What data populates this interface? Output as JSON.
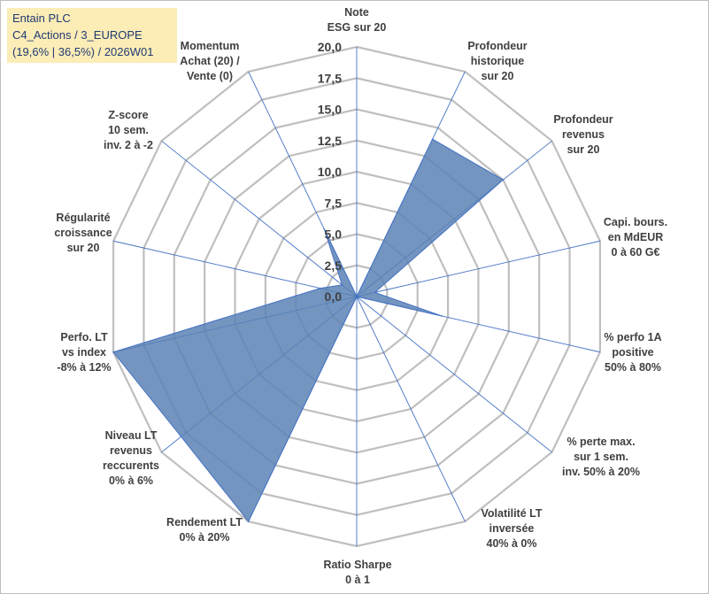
{
  "header": {
    "line1": "Entain PLC",
    "line2": "C4_Actions / 3_EUROPE",
    "line3": "(19,6% | 36,5%) / 2026W01"
  },
  "chart_data": {
    "type": "radar",
    "title": "",
    "rlim": [
      0,
      20
    ],
    "ticks": [
      "0,0",
      "2,5",
      "5,0",
      "7,5",
      "10,0",
      "12,5",
      "15,0",
      "17,5",
      "20,0"
    ],
    "grid": true,
    "colors": {
      "fill": "#5b83b5",
      "stroke": "#4472c4",
      "grid": "#bfbfbf",
      "spoke": "#4472c4"
    },
    "axes": [
      {
        "label": [
          "Note",
          "ESG sur 20"
        ],
        "value": 0
      },
      {
        "label": [
          "Profondeur",
          "historique",
          "sur 20"
        ],
        "value": 14
      },
      {
        "label": [
          "Profondeur",
          "revenus",
          "sur 20"
        ],
        "value": 15
      },
      {
        "label": [
          "Capi. bours.",
          "en MdEUR",
          "0 à 60 G€"
        ],
        "value": 1.5
      },
      {
        "label": [
          "% perfo 1A",
          "positive",
          "50% à 80%"
        ],
        "value": 7
      },
      {
        "label": [
          "% perte max.",
          "sur 1 sem.",
          "inv. 50% à 20%"
        ],
        "value": 0
      },
      {
        "label": [
          "Volatilité LT",
          "inversée",
          "40% à 0%"
        ],
        "value": 0
      },
      {
        "label": [
          "Ratio Sharpe",
          "0 à 1"
        ],
        "value": 0
      },
      {
        "label": [
          "Rendement LT",
          "0% à 20%"
        ],
        "value": 20
      },
      {
        "label": [
          "Niveau LT",
          "revenus",
          "reccurents",
          "0% à 6%"
        ],
        "value": 18
      },
      {
        "label": [
          "Perfo. LT",
          "vs index",
          "-8% à 12%"
        ],
        "value": 20
      },
      {
        "label": [
          "Régularité",
          "croissance",
          "sur 20"
        ],
        "value": 3
      },
      {
        "label": [
          "Z-score",
          "10 sem.",
          "inv. 2 à -2"
        ],
        "value": 1.5
      },
      {
        "label": [
          "Momentum",
          "Achat (20) /",
          "Vente (0)"
        ],
        "value": 6
      }
    ]
  }
}
